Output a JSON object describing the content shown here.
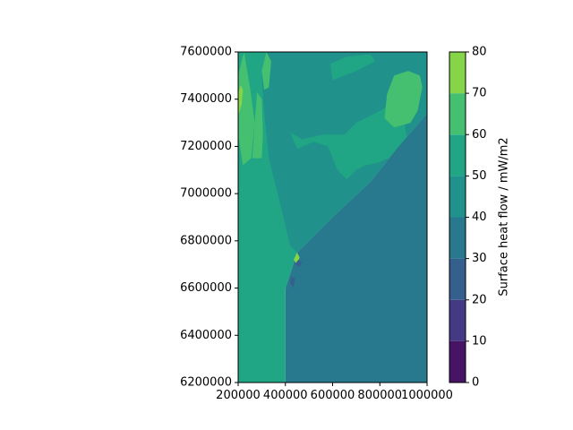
{
  "chart_data": {
    "type": "heatmap",
    "subtype": "filled-contour",
    "title": "",
    "xlabel": "",
    "ylabel": "",
    "xlim": [
      200000,
      1000000
    ],
    "ylim": [
      6200000,
      7600000
    ],
    "x_ticks": [
      "200000",
      "400000",
      "600000",
      "800000",
      "1000000"
    ],
    "y_ticks": [
      "6200000",
      "6400000",
      "6600000",
      "6800000",
      "7000000",
      "7200000",
      "7400000",
      "7600000"
    ],
    "colorbar": {
      "label": "Surface heat flow / mW/m2",
      "levels": [
        0,
        10,
        20,
        30,
        40,
        50,
        60,
        70,
        80
      ],
      "tick_labels": [
        "0",
        "10",
        "20",
        "30",
        "40",
        "50",
        "60",
        "70",
        "80"
      ],
      "colors": [
        "#471365",
        "#443a83",
        "#355f8d",
        "#29798e",
        "#21918c",
        "#21a685",
        "#45bf70",
        "#86d549",
        "#d2e21b"
      ]
    },
    "regions": [
      {
        "value": 55,
        "polygon": [
          [
            200000,
            6200000
          ],
          [
            400000,
            6200000
          ],
          [
            400000,
            6600000
          ],
          [
            450000,
            6750000
          ],
          [
            600000,
            6900000
          ],
          [
            760000,
            7050000
          ],
          [
            880000,
            7200000
          ],
          [
            1000000,
            7340000
          ],
          [
            1000000,
            7600000
          ],
          [
            200000,
            7600000
          ]
        ]
      },
      {
        "value": 45,
        "polygon": [
          [
            320000,
            7600000
          ],
          [
            1000000,
            7600000
          ],
          [
            1000000,
            7340000
          ],
          [
            880000,
            7200000
          ],
          [
            760000,
            7050000
          ],
          [
            600000,
            6900000
          ],
          [
            450000,
            6750000
          ],
          [
            420000,
            6780000
          ],
          [
            380000,
            6950000
          ],
          [
            330000,
            7150000
          ],
          [
            310000,
            7350000
          ],
          [
            300000,
            7500000
          ]
        ]
      },
      {
        "value": 55,
        "polygon": [
          [
            420000,
            7260000
          ],
          [
            470000,
            7230000
          ],
          [
            560000,
            7250000
          ],
          [
            650000,
            7250000
          ],
          [
            700000,
            7300000
          ],
          [
            800000,
            7350000
          ],
          [
            850000,
            7380000
          ],
          [
            900000,
            7330000
          ],
          [
            920000,
            7200000
          ],
          [
            860000,
            7160000
          ],
          [
            790000,
            7130000
          ],
          [
            740000,
            7120000
          ],
          [
            700000,
            7100000
          ],
          [
            660000,
            7060000
          ],
          [
            620000,
            7100000
          ],
          [
            580000,
            7200000
          ],
          [
            520000,
            7220000
          ],
          [
            450000,
            7190000
          ]
        ]
      },
      {
        "value": 55,
        "polygon": [
          [
            600000,
            7480000
          ],
          [
            700000,
            7520000
          ],
          [
            780000,
            7560000
          ],
          [
            760000,
            7590000
          ],
          [
            660000,
            7580000
          ],
          [
            590000,
            7550000
          ]
        ]
      },
      {
        "value": 65,
        "polygon": [
          [
            820000,
            7320000
          ],
          [
            860000,
            7280000
          ],
          [
            930000,
            7300000
          ],
          [
            960000,
            7350000
          ],
          [
            980000,
            7450000
          ],
          [
            970000,
            7500000
          ],
          [
            920000,
            7520000
          ],
          [
            860000,
            7500000
          ],
          [
            830000,
            7420000
          ]
        ]
      },
      {
        "value": 65,
        "polygon": [
          [
            200000,
            7500000
          ],
          [
            225000,
            7600000
          ],
          [
            250000,
            7450000
          ],
          [
            270000,
            7300000
          ],
          [
            255000,
            7150000
          ],
          [
            220000,
            7120000
          ],
          [
            200000,
            7250000
          ]
        ]
      },
      {
        "value": 65,
        "polygon": [
          [
            260000,
            7150000
          ],
          [
            300000,
            7150000
          ],
          [
            305000,
            7250000
          ],
          [
            300000,
            7400000
          ],
          [
            280000,
            7430000
          ],
          [
            270000,
            7300000
          ]
        ]
      },
      {
        "value": 65,
        "polygon": [
          [
            300000,
            7520000
          ],
          [
            320000,
            7600000
          ],
          [
            340000,
            7560000
          ],
          [
            330000,
            7450000
          ],
          [
            310000,
            7440000
          ]
        ]
      },
      {
        "value": 35,
        "polygon": [
          [
            400000,
            6200000
          ],
          [
            1000000,
            6200000
          ],
          [
            1000000,
            7340000
          ],
          [
            880000,
            7200000
          ],
          [
            760000,
            7050000
          ],
          [
            600000,
            6900000
          ],
          [
            450000,
            6750000
          ],
          [
            400000,
            6600000
          ]
        ]
      },
      {
        "value": 75,
        "polygon": [
          [
            200000,
            7330000
          ],
          [
            215000,
            7380000
          ],
          [
            220000,
            7440000
          ],
          [
            210000,
            7460000
          ],
          [
            200000,
            7420000
          ]
        ]
      },
      {
        "value": 75,
        "polygon": [
          [
            435000,
            6720000
          ],
          [
            450000,
            6700000
          ],
          [
            460000,
            6730000
          ],
          [
            450000,
            6750000
          ]
        ]
      },
      {
        "value": 25,
        "polygon": [
          [
            440000,
            6700000
          ],
          [
            460000,
            6690000
          ],
          [
            470000,
            6710000
          ],
          [
            455000,
            6720000
          ]
        ]
      },
      {
        "value": 25,
        "polygon": [
          [
            420000,
            6620000
          ],
          [
            435000,
            6600000
          ],
          [
            440000,
            6640000
          ],
          [
            425000,
            6650000
          ]
        ]
      }
    ]
  }
}
